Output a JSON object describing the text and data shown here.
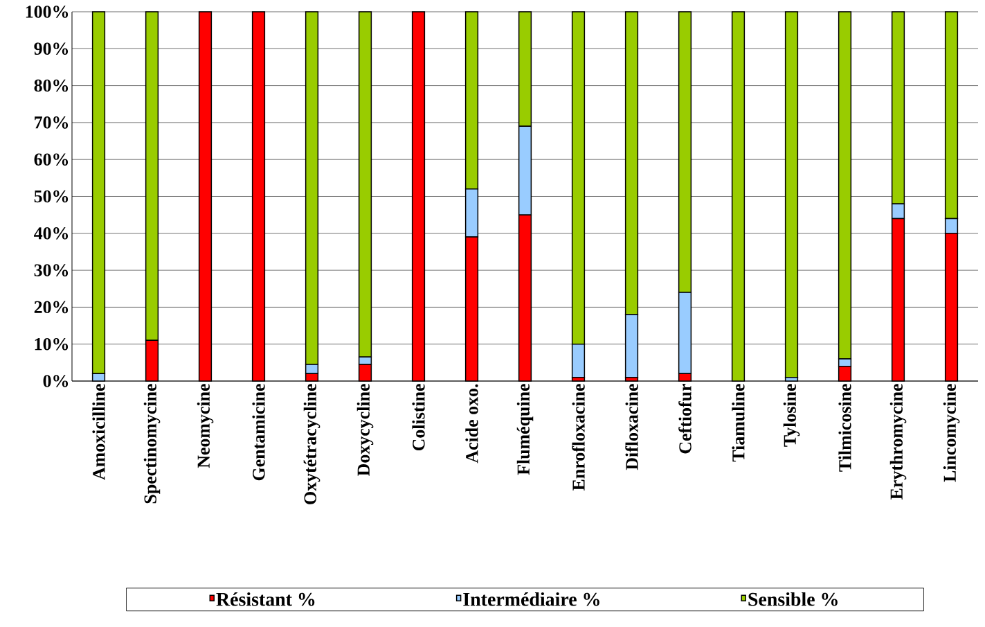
{
  "chart_data": {
    "type": "bar",
    "stacked": true,
    "categories": [
      "Amoxicilline",
      "Spectinomycine",
      "Neomycine",
      "Gentamicine",
      "Oxytétracycline",
      "Doxycycline",
      "Colistine",
      "Acide oxo.",
      "Fluméquine",
      "Enrofloxacine",
      "Difloxacine",
      "Ceftiofur",
      "Tiamuline",
      "Tylosine",
      "Tilmicosine",
      "Erythromycine",
      "Lincomycine"
    ],
    "series": [
      {
        "name": "Résistant %",
        "color": "#ff0000",
        "values": [
          0,
          11,
          100,
          100,
          2,
          4.5,
          100,
          39,
          45,
          1,
          1,
          2,
          0,
          0,
          4,
          44,
          40
        ]
      },
      {
        "name": "Intermédiaire %",
        "color": "#99ccff",
        "values": [
          2,
          0,
          0,
          0,
          2.5,
          2,
          0,
          13,
          24,
          9,
          17,
          22,
          0,
          1,
          2,
          4,
          4
        ]
      },
      {
        "name": "Sensible %",
        "color": "#99cc00",
        "values": [
          98,
          89,
          0,
          0,
          95.5,
          93.5,
          0,
          48,
          31,
          90,
          82,
          76,
          100,
          99,
          94,
          52,
          56
        ]
      }
    ],
    "ylim": [
      0,
      100
    ],
    "yticks": [
      {
        "value": 0,
        "label": "0%"
      },
      {
        "value": 10,
        "label": "10%"
      },
      {
        "value": 20,
        "label": "20%"
      },
      {
        "value": 30,
        "label": "30%"
      },
      {
        "value": 40,
        "label": "40%"
      },
      {
        "value": 50,
        "label": "50%"
      },
      {
        "value": 60,
        "label": "60%"
      },
      {
        "value": 70,
        "label": "70%"
      },
      {
        "value": 80,
        "label": "80%"
      },
      {
        "value": 90,
        "label": "90%"
      },
      {
        "value": 100,
        "label": "100%"
      }
    ],
    "grid": "y",
    "legend": "bottom"
  }
}
